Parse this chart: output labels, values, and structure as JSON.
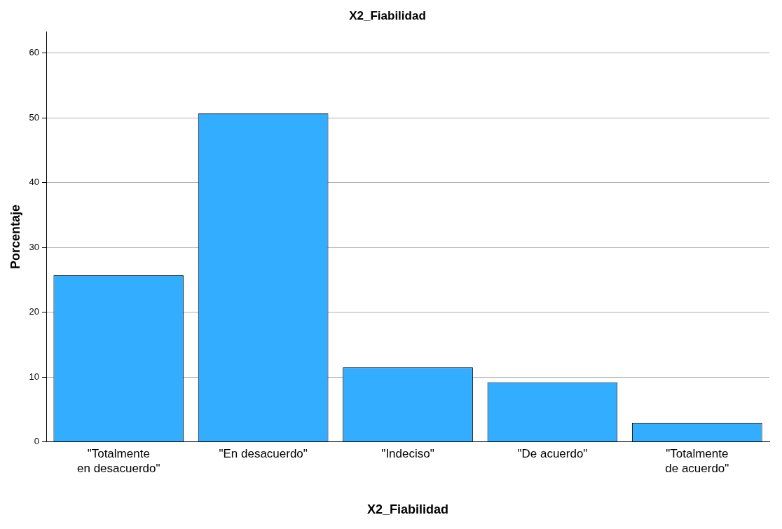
{
  "chart_data": {
    "type": "bar",
    "title": "X2_Fiabilidad",
    "xlabel": "X2_Fiabilidad",
    "ylabel": "Porcentaje",
    "categories": [
      "\"Totalmente en desacuerdo\"",
      "\"En desacuerdo\"",
      "\"Indeciso\"",
      "\"De acuerdo\"",
      "\"Totalmente de acuerdo\""
    ],
    "values": [
      25.7,
      50.7,
      11.5,
      9.2,
      2.9
    ],
    "color": "#33adff",
    "ylim": [
      0,
      63.3
    ],
    "yticks": [
      0,
      10,
      20,
      30,
      40,
      50,
      60
    ],
    "grid": "y",
    "legend": false
  }
}
